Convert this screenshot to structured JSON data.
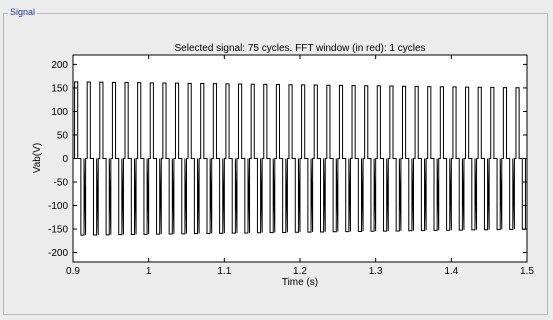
{
  "panel": {
    "title": "Signal"
  },
  "chart_data": {
    "type": "line",
    "title": "Selected signal: 75 cycles. FFT window (in red): 1 cycles",
    "xlabel": "Time (s)",
    "ylabel": "Vab(V)",
    "xlim": [
      0.9,
      1.5
    ],
    "ylim": [
      -220,
      220
    ],
    "x_ticks": [
      0.9,
      1,
      1.1,
      1.2,
      1.3,
      1.4,
      1.5
    ],
    "x_tick_labels": [
      "0.9",
      "1",
      "1.1",
      "1.2",
      "1.3",
      "1.4",
      "1.5"
    ],
    "y_ticks": [
      200,
      150,
      100,
      50,
      0,
      -50,
      -100,
      -150,
      -200
    ],
    "y_tick_labels": [
      "200",
      "150",
      "100",
      "50",
      "0",
      "-50",
      "-100",
      "-150",
      "-200"
    ],
    "grid": false,
    "legend": "none",
    "series": [
      {
        "period_s": 0.016667,
        "first_cycle_start_s": 0.9,
        "peak_start_V": 163,
        "peak_end_V": 150,
        "line_color": "#000000"
      }
    ]
  }
}
